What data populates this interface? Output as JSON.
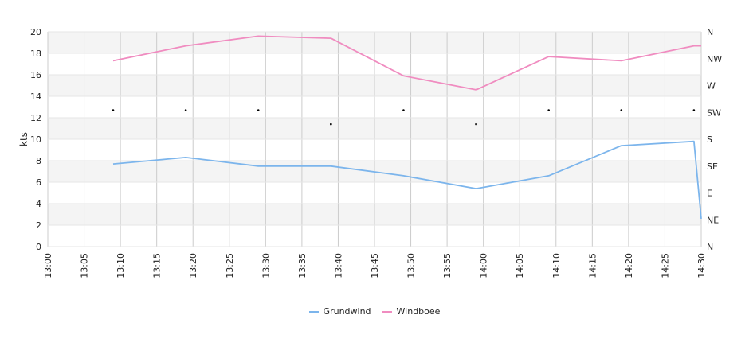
{
  "chart_data": {
    "type": "line",
    "title": "",
    "ylabel": "kts",
    "ylim": [
      0,
      20
    ],
    "y_ticks": [
      0,
      2,
      4,
      6,
      8,
      10,
      12,
      14,
      16,
      18,
      20
    ],
    "y2_ticks": [
      "N",
      "NE",
      "E",
      "SE",
      "S",
      "SW",
      "W",
      "NW",
      "N"
    ],
    "x_ticks": [
      "13:00",
      "13:05",
      "13:10",
      "13:15",
      "13:20",
      "13:25",
      "13:30",
      "13:35",
      "13:40",
      "13:45",
      "13:50",
      "13:55",
      "14:00",
      "14:05",
      "14:10",
      "14:15",
      "14:20",
      "14:25",
      "14:30"
    ],
    "xlim": [
      "13:00",
      "14:30"
    ],
    "grid": true,
    "legend_position": "bottom",
    "series": [
      {
        "name": "Grundwind",
        "color": "#7cb5ec",
        "x": [
          "13:09",
          "13:19",
          "13:29",
          "13:39",
          "13:49",
          "13:59",
          "14:09",
          "14:19",
          "14:29",
          "14:30"
        ],
        "values": [
          7.7,
          8.3,
          7.5,
          7.5,
          6.6,
          5.4,
          6.6,
          9.4,
          9.8,
          2.6
        ]
      },
      {
        "name": "Windboee",
        "color": "#f08cc0",
        "x": [
          "13:09",
          "13:19",
          "13:29",
          "13:39",
          "13:49",
          "13:59",
          "14:09",
          "14:19",
          "14:29",
          "14:30"
        ],
        "values": [
          17.3,
          18.7,
          19.6,
          19.4,
          15.9,
          14.6,
          17.7,
          17.3,
          18.7,
          18.7
        ]
      },
      {
        "name": "",
        "type": "scatter",
        "color": "#000000",
        "x": [
          "13:09",
          "13:19",
          "13:29",
          "13:39",
          "13:49",
          "13:59",
          "14:09",
          "14:19",
          "14:29"
        ],
        "directions": [
          "SW",
          "SW",
          "SW",
          "SSW",
          "SW",
          "SSW",
          "SW",
          "SW",
          "SW"
        ],
        "values": [
          12.7,
          12.7,
          12.7,
          11.4,
          12.7,
          11.4,
          12.7,
          12.7,
          12.7
        ]
      }
    ]
  }
}
